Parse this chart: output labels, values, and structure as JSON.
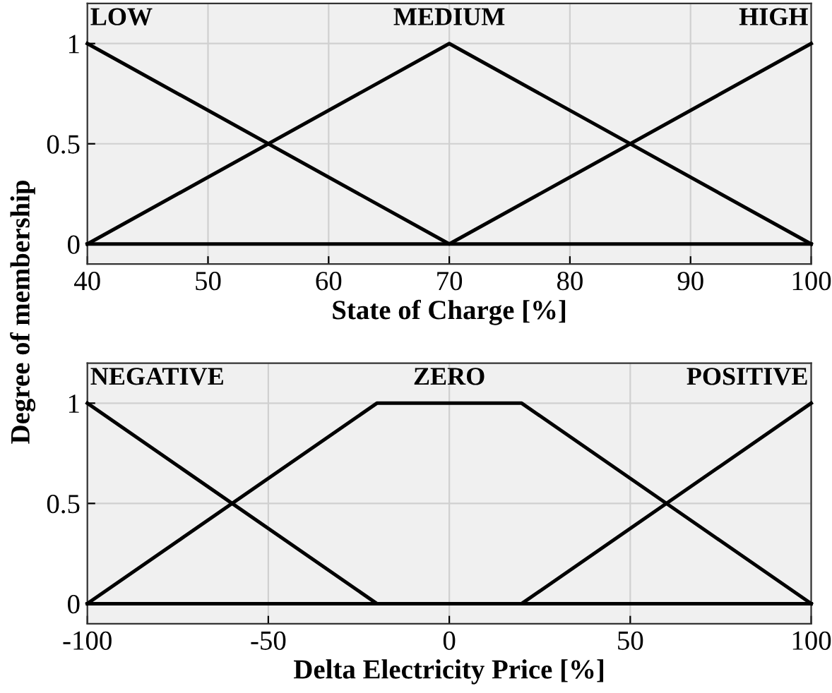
{
  "chart_data": [
    {
      "type": "line",
      "xlabel": "State of Charge [%]",
      "ylabel": "Degree of membership",
      "xlim": [
        40,
        100
      ],
      "ylim": [
        -0.1,
        1.2
      ],
      "xticks": [
        40,
        50,
        60,
        70,
        80,
        90,
        100
      ],
      "yticks": [
        0,
        0.5,
        1
      ],
      "grid": true,
      "legend": false,
      "marker": "none",
      "line_style": "solid",
      "series": [
        {
          "name": "LOW",
          "color": "#000000",
          "x": [
            40,
            70,
            100
          ],
          "values": [
            1,
            0,
            0
          ]
        },
        {
          "name": "MEDIUM",
          "color": "#000000",
          "x": [
            40,
            70,
            100
          ],
          "values": [
            0,
            1,
            0
          ]
        },
        {
          "name": "HIGH",
          "color": "#000000",
          "x": [
            40,
            70,
            100
          ],
          "values": [
            0,
            0,
            1
          ]
        }
      ]
    },
    {
      "type": "line",
      "xlabel": "Delta Electricity Price [%]",
      "xlim": [
        -100,
        100
      ],
      "ylim": [
        -0.1,
        1.2
      ],
      "xticks": [
        -100,
        -50,
        0,
        50,
        100
      ],
      "yticks": [
        0,
        0.5,
        1
      ],
      "grid": true,
      "legend": false,
      "marker": "none",
      "line_style": "solid",
      "series": [
        {
          "name": "NEGATIVE",
          "color": "#000000",
          "x": [
            -100,
            -20,
            100
          ],
          "values": [
            1,
            0,
            0
          ]
        },
        {
          "name": "ZERO",
          "color": "#000000",
          "x": [
            -100,
            -20,
            20,
            100
          ],
          "values": [
            0,
            1,
            1,
            0
          ]
        },
        {
          "name": "POSITIVE",
          "color": "#000000",
          "x": [
            -100,
            20,
            100
          ],
          "values": [
            0,
            0,
            1
          ]
        }
      ]
    }
  ]
}
